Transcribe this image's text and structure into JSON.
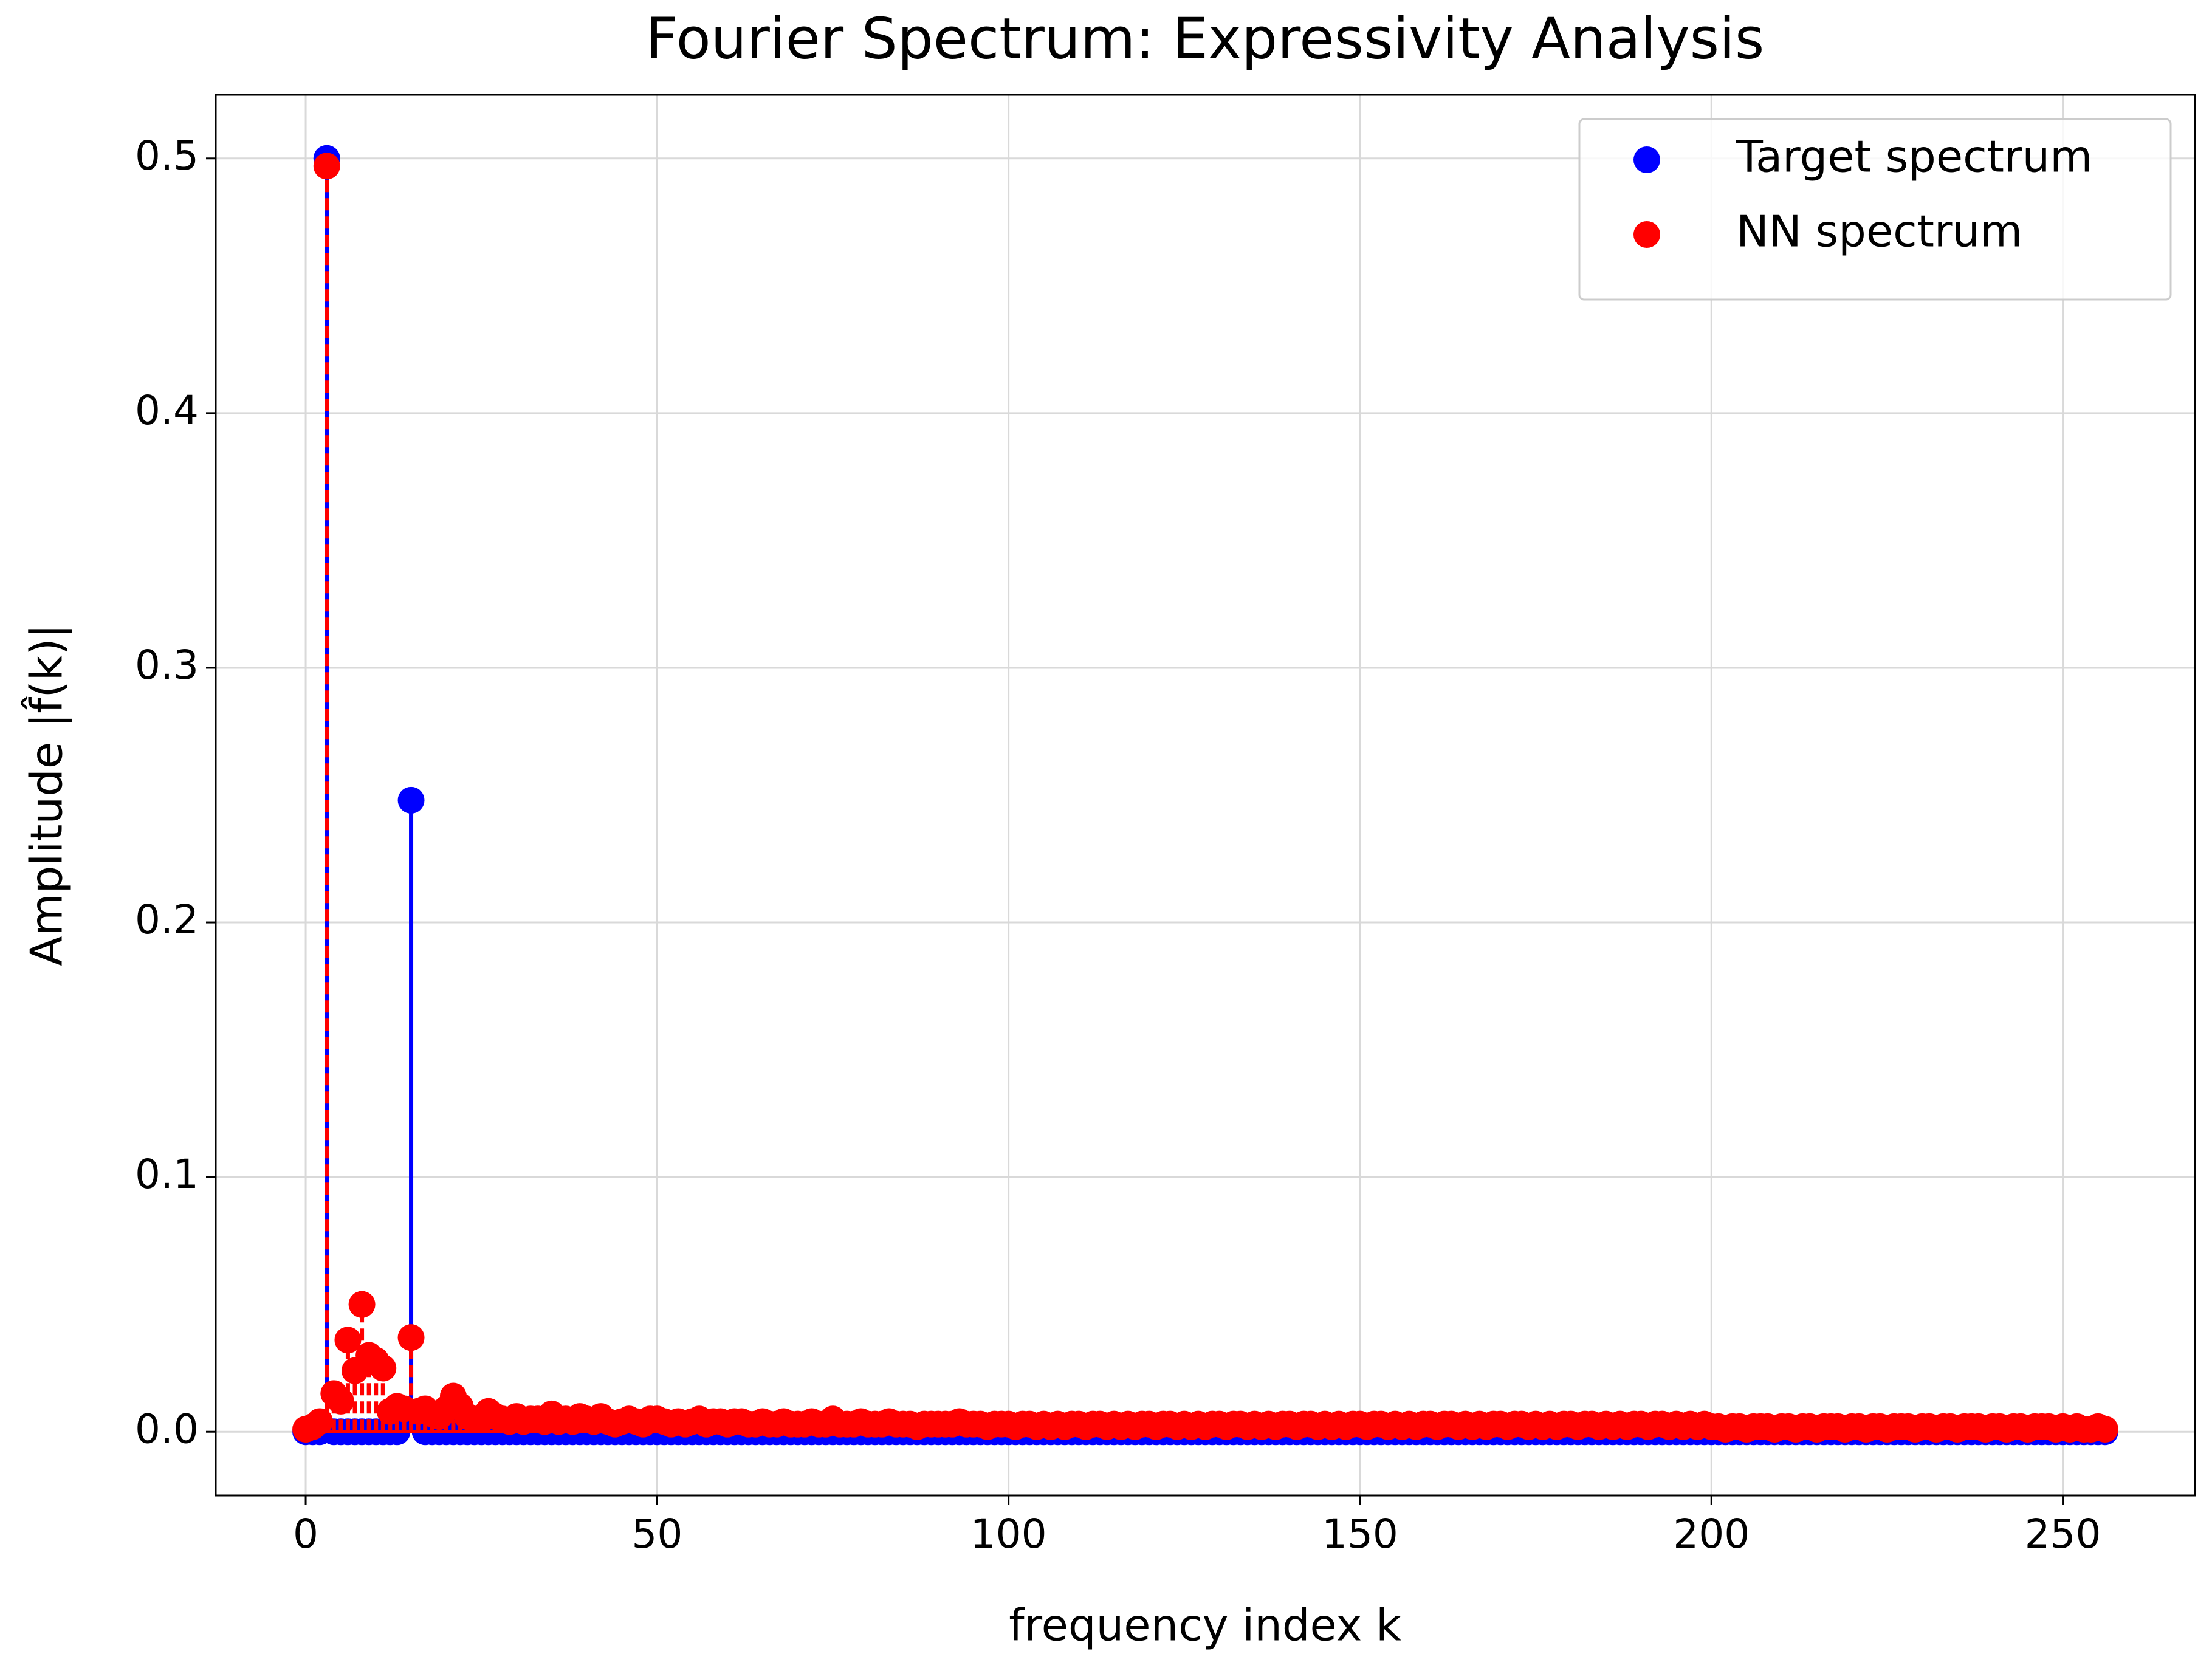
{
  "chart_data": {
    "type": "stem",
    "title": "Fourier Spectrum: Expressivity Analysis",
    "x_label": "frequency index k",
    "y_label": "Amplitude |f̂(k)|",
    "xlim": [
      -12.8,
      268.8
    ],
    "ylim": [
      -0.025,
      0.525
    ],
    "xticks": [
      0,
      50,
      100,
      150,
      200,
      250
    ],
    "yticks": [
      {
        "value": 0,
        "label": "0.0"
      },
      0.1,
      0.2,
      0.3,
      0.4,
      0.5
    ],
    "grid": true,
    "legend": "upper right",
    "x": [
      0,
      1,
      2,
      3,
      4,
      5,
      6,
      7,
      8,
      9,
      10,
      11,
      12,
      13,
      14,
      15,
      16,
      17,
      18,
      19,
      20,
      21,
      22,
      23,
      24,
      25,
      26,
      27,
      28,
      29,
      30,
      31,
      32,
      33,
      34,
      35,
      36,
      37,
      38,
      39,
      40,
      41,
      42,
      43,
      44,
      45,
      46,
      47,
      48,
      49,
      50,
      51,
      52,
      53,
      54,
      55,
      56,
      57,
      58,
      59,
      60,
      61,
      62,
      63,
      64,
      65,
      66,
      67,
      68,
      69,
      70,
      71,
      72,
      73,
      74,
      75,
      76,
      77,
      78,
      79,
      80,
      81,
      82,
      83,
      84,
      85,
      86,
      87,
      88,
      89,
      90,
      91,
      92,
      93,
      94,
      95,
      96,
      97,
      98,
      99,
      100,
      101,
      102,
      103,
      104,
      105,
      106,
      107,
      108,
      109,
      110,
      111,
      112,
      113,
      114,
      115,
      116,
      117,
      118,
      119,
      120,
      121,
      122,
      123,
      124,
      125,
      126,
      127,
      128,
      129,
      130,
      131,
      132,
      133,
      134,
      135,
      136,
      137,
      138,
      139,
      140,
      141,
      142,
      143,
      144,
      145,
      146,
      147,
      148,
      149,
      150,
      151,
      152,
      153,
      154,
      155,
      156,
      157,
      158,
      159,
      160,
      161,
      162,
      163,
      164,
      165,
      166,
      167,
      168,
      169,
      170,
      171,
      172,
      173,
      174,
      175,
      176,
      177,
      178,
      179,
      180,
      181,
      182,
      183,
      184,
      185,
      186,
      187,
      188,
      189,
      190,
      191,
      192,
      193,
      194,
      195,
      196,
      197,
      198,
      199,
      200,
      201,
      202,
      203,
      204,
      205,
      206,
      207,
      208,
      209,
      210,
      211,
      212,
      213,
      214,
      215,
      216,
      217,
      218,
      219,
      220,
      221,
      222,
      223,
      224,
      225,
      226,
      227,
      228,
      229,
      230,
      231,
      232,
      233,
      234,
      235,
      236,
      237,
      238,
      239,
      240,
      241,
      242,
      243,
      244,
      245,
      246,
      247,
      248,
      249,
      250,
      251,
      252,
      253,
      254,
      255,
      256
    ],
    "series": [
      {
        "name": "Target spectrum",
        "color": "#0000ff",
        "line_style": "solid",
        "values": [
          0,
          0,
          0,
          0.5,
          0,
          0,
          0,
          0,
          0,
          0,
          0,
          0,
          0,
          0,
          0.004,
          0.248,
          0.004,
          0,
          0,
          0,
          0,
          0,
          0,
          0,
          0,
          0,
          0,
          0,
          0,
          0,
          0,
          0,
          0,
          0,
          0,
          0,
          0,
          0,
          0,
          0,
          0,
          0,
          0,
          0,
          0,
          0,
          0,
          0,
          0,
          0,
          0,
          0,
          0,
          0,
          0,
          0,
          0,
          0,
          0,
          0,
          0,
          0,
          0,
          0,
          0,
          0,
          0,
          0,
          0,
          0,
          0,
          0,
          0,
          0,
          0,
          0,
          0,
          0,
          0,
          0,
          0,
          0,
          0,
          0,
          0,
          0,
          0,
          0,
          0,
          0,
          0,
          0,
          0,
          0,
          0,
          0,
          0,
          0,
          0,
          0,
          0,
          0,
          0,
          0,
          0,
          0,
          0,
          0,
          0,
          0,
          0,
          0,
          0,
          0,
          0,
          0,
          0,
          0,
          0,
          0,
          0,
          0,
          0,
          0,
          0,
          0,
          0,
          0,
          0,
          0,
          0,
          0,
          0,
          0,
          0,
          0,
          0,
          0,
          0,
          0,
          0,
          0,
          0,
          0,
          0,
          0,
          0,
          0,
          0,
          0,
          0,
          0,
          0,
          0,
          0,
          0,
          0,
          0,
          0,
          0,
          0,
          0,
          0,
          0,
          0,
          0,
          0,
          0,
          0,
          0,
          0,
          0,
          0,
          0,
          0,
          0,
          0,
          0,
          0,
          0,
          0,
          0,
          0,
          0,
          0,
          0,
          0,
          0,
          0,
          0,
          0,
          0,
          0,
          0,
          0,
          0,
          0,
          0,
          0,
          0,
          0,
          0,
          0,
          0,
          0,
          0,
          0,
          0,
          0,
          0,
          0,
          0,
          0,
          0,
          0,
          0,
          0,
          0,
          0,
          0,
          0,
          0,
          0,
          0,
          0,
          0,
          0,
          0,
          0,
          0,
          0,
          0,
          0,
          0,
          0,
          0,
          0,
          0,
          0,
          0,
          0,
          0,
          0,
          0,
          0,
          0,
          0,
          0,
          0,
          0,
          0,
          0,
          0,
          0,
          0,
          0,
          0
        ]
      },
      {
        "name": "NN spectrum",
        "color": "#ff0000",
        "line_style": "dashed",
        "values": [
          0.001,
          0.002,
          0.004,
          0.497,
          0.015,
          0.012,
          0.036,
          0.024,
          0.05,
          0.03,
          0.028,
          0.025,
          0.008,
          0.01,
          0.009,
          0.037,
          0.008,
          0.009,
          0.007,
          0.006,
          0.009,
          0.014,
          0.01,
          0.006,
          0.005,
          0.005,
          0.008,
          0.006,
          0.005,
          0.004,
          0.006,
          0.004,
          0.005,
          0.005,
          0.004,
          0.007,
          0.004,
          0.005,
          0.004,
          0.006,
          0.005,
          0.004,
          0.006,
          0.004,
          0.003,
          0.004,
          0.005,
          0.004,
          0.003,
          0.005,
          0.005,
          0.004,
          0.003,
          0.004,
          0.003,
          0.004,
          0.005,
          0.003,
          0.004,
          0.004,
          0.003,
          0.004,
          0.004,
          0.003,
          0.003,
          0.004,
          0.003,
          0.003,
          0.004,
          0.003,
          0.003,
          0.003,
          0.004,
          0.003,
          0.003,
          0.005,
          0.003,
          0.003,
          0.003,
          0.004,
          0.003,
          0.003,
          0.003,
          0.004,
          0.003,
          0.003,
          0.003,
          0.002,
          0.003,
          0.003,
          0.003,
          0.003,
          0.003,
          0.004,
          0.003,
          0.003,
          0.003,
          0.002,
          0.003,
          0.003,
          0.003,
          0.002,
          0.003,
          0.003,
          0.002,
          0.003,
          0.002,
          0.003,
          0.002,
          0.003,
          0.003,
          0.002,
          0.003,
          0.003,
          0.002,
          0.003,
          0.002,
          0.003,
          0.002,
          0.003,
          0.003,
          0.002,
          0.003,
          0.003,
          0.002,
          0.003,
          0.002,
          0.003,
          0.002,
          0.003,
          0.003,
          0.002,
          0.003,
          0.003,
          0.002,
          0.003,
          0.002,
          0.003,
          0.002,
          0.003,
          0.003,
          0.002,
          0.003,
          0.003,
          0.002,
          0.003,
          0.002,
          0.003,
          0.002,
          0.003,
          0.003,
          0.002,
          0.003,
          0.003,
          0.002,
          0.003,
          0.002,
          0.003,
          0.002,
          0.003,
          0.003,
          0.002,
          0.003,
          0.003,
          0.002,
          0.003,
          0.002,
          0.003,
          0.002,
          0.003,
          0.003,
          0.002,
          0.003,
          0.003,
          0.002,
          0.003,
          0.002,
          0.003,
          0.002,
          0.003,
          0.003,
          0.002,
          0.003,
          0.003,
          0.002,
          0.003,
          0.002,
          0.003,
          0.002,
          0.003,
          0.003,
          0.002,
          0.003,
          0.003,
          0.002,
          0.003,
          0.002,
          0.003,
          0.002,
          0.003,
          0.002,
          0.002,
          0.001,
          0.002,
          0.002,
          0.001,
          0.002,
          0.002,
          0.002,
          0.001,
          0.002,
          0.002,
          0.001,
          0.002,
          0.002,
          0.001,
          0.002,
          0.002,
          0.002,
          0.001,
          0.002,
          0.002,
          0.001,
          0.002,
          0.002,
          0.001,
          0.002,
          0.002,
          0.002,
          0.001,
          0.002,
          0.002,
          0.001,
          0.002,
          0.002,
          0.001,
          0.002,
          0.002,
          0.002,
          0.001,
          0.002,
          0.002,
          0.001,
          0.002,
          0.002,
          0.001,
          0.002,
          0.002,
          0.002,
          0.001,
          0.002,
          0.001,
          0.002,
          0.001,
          0.001,
          0.002,
          0.001
        ]
      }
    ]
  }
}
